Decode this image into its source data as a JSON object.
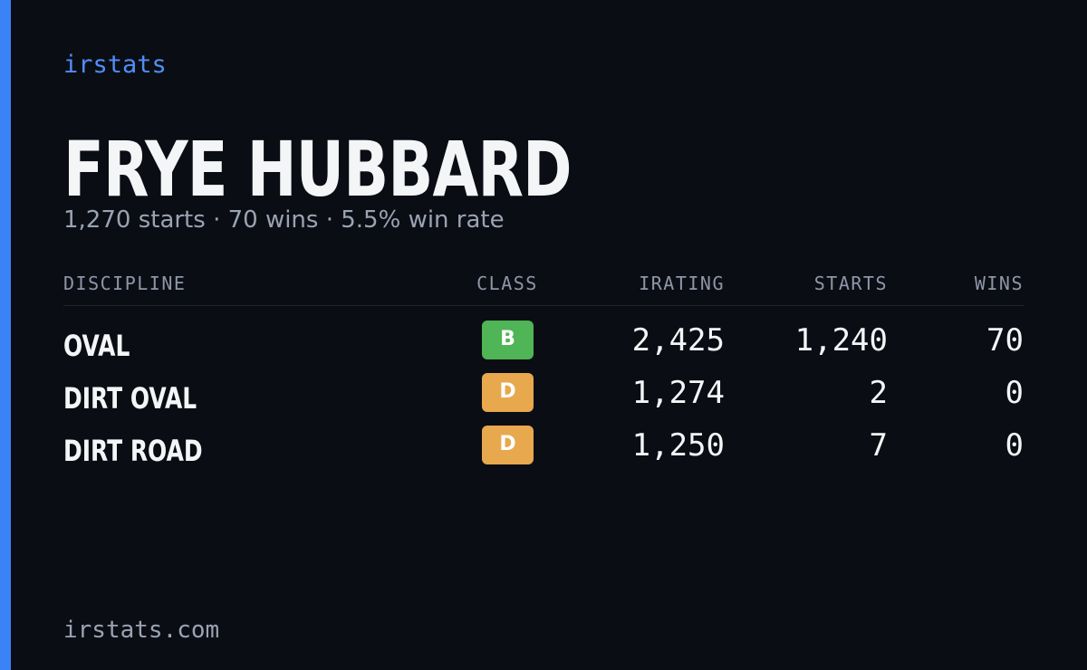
{
  "header": {
    "brand": "irstats",
    "name": "FRYE HUBBARD",
    "summary": "1,270 starts · 70 wins · 5.5% win rate"
  },
  "table": {
    "columns": [
      "DISCIPLINE",
      "CLASS",
      "IRATING",
      "STARTS",
      "WINS"
    ],
    "rows": [
      [
        "OVAL",
        "B",
        "2,425",
        "1,240",
        "70"
      ],
      [
        "DIRT OVAL",
        "D",
        "1,274",
        "2",
        "0"
      ],
      [
        "DIRT ROAD",
        "D",
        "1,250",
        "7",
        "0"
      ]
    ],
    "class_colors": [
      "#4fb556",
      "#e8a84e",
      "#e8a84e"
    ]
  },
  "footer": {
    "url": "irstats.com"
  }
}
